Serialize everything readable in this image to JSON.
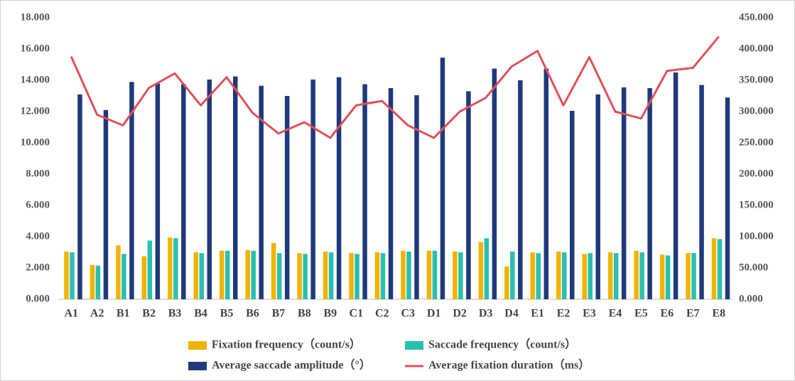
{
  "chart_data": {
    "type": "bar",
    "categories": [
      "A1",
      "A2",
      "B1",
      "B2",
      "B3",
      "B4",
      "B5",
      "B6",
      "B7",
      "B8",
      "B9",
      "C1",
      "C2",
      "C3",
      "D1",
      "D2",
      "D3",
      "D4",
      "E1",
      "E2",
      "E3",
      "E4",
      "E5",
      "E6",
      "E7",
      "E8"
    ],
    "series": [
      {
        "name": "Fixation frequency（count/s）",
        "color": "#f0b400",
        "type": "bar",
        "values": [
          3.05,
          2.2,
          3.45,
          2.75,
          3.95,
          3.0,
          3.1,
          3.15,
          3.6,
          2.95,
          3.05,
          2.95,
          3.0,
          3.1,
          3.1,
          3.05,
          3.65,
          2.1,
          3.0,
          3.05,
          2.9,
          3.0,
          3.1,
          2.85,
          2.95,
          3.9
        ]
      },
      {
        "name": "Saccade frequency（count/s）",
        "color": "#2bbfb0",
        "type": "bar",
        "values": [
          3.0,
          2.15,
          2.9,
          3.75,
          3.9,
          2.95,
          3.1,
          3.1,
          2.95,
          2.9,
          3.0,
          2.9,
          2.95,
          3.05,
          3.1,
          3.0,
          3.9,
          3.05,
          2.95,
          3.0,
          2.95,
          2.95,
          3.0,
          2.8,
          2.95,
          3.85
        ]
      },
      {
        "name": "Average saccade amplitude（°）",
        "color": "#1f3a7a",
        "type": "bar",
        "values": [
          13.1,
          12.1,
          13.9,
          13.8,
          13.75,
          14.05,
          14.25,
          13.65,
          13.0,
          14.05,
          14.2,
          13.75,
          13.5,
          13.05,
          15.45,
          13.3,
          14.75,
          14.0,
          14.75,
          12.05,
          13.1,
          13.55,
          13.5,
          14.5,
          13.7,
          12.9
        ]
      },
      {
        "name": "Average fixation duration（ms）",
        "color": "#e0505a",
        "type": "line",
        "axis": "y2",
        "values": [
          388,
          295,
          278,
          338,
          361,
          310,
          355,
          298,
          265,
          283,
          258,
          310,
          317,
          278,
          258,
          300,
          322,
          372,
          397,
          310,
          387,
          300,
          289,
          365,
          370,
          420
        ]
      }
    ],
    "ylim": [
      0,
      18
    ],
    "yticks": [
      {
        "value": 0,
        "label": "0.000"
      },
      {
        "value": 2,
        "label": "2.000"
      },
      {
        "value": 4,
        "label": "4.000"
      },
      {
        "value": 6,
        "label": "6.000"
      },
      {
        "value": 8,
        "label": "8.000"
      },
      {
        "value": 10,
        "label": "10.000"
      },
      {
        "value": 12,
        "label": "12.000"
      },
      {
        "value": 14,
        "label": "14.000"
      },
      {
        "value": 16,
        "label": "16.000"
      },
      {
        "value": 18,
        "label": "18.000"
      }
    ],
    "y2lim": [
      0,
      450
    ],
    "y2ticks": [
      {
        "value": 0,
        "label": "0.000"
      },
      {
        "value": 50,
        "label": "50.000"
      },
      {
        "value": 100,
        "label": "100.000"
      },
      {
        "value": 150,
        "label": "150.000"
      },
      {
        "value": 200,
        "label": "200.000"
      },
      {
        "value": 250,
        "label": "250.000"
      },
      {
        "value": 300,
        "label": "300.000"
      },
      {
        "value": 350,
        "label": "350.000"
      },
      {
        "value": 400,
        "label": "400.000"
      },
      {
        "value": 450,
        "label": "450.000"
      }
    ],
    "grid": false
  }
}
